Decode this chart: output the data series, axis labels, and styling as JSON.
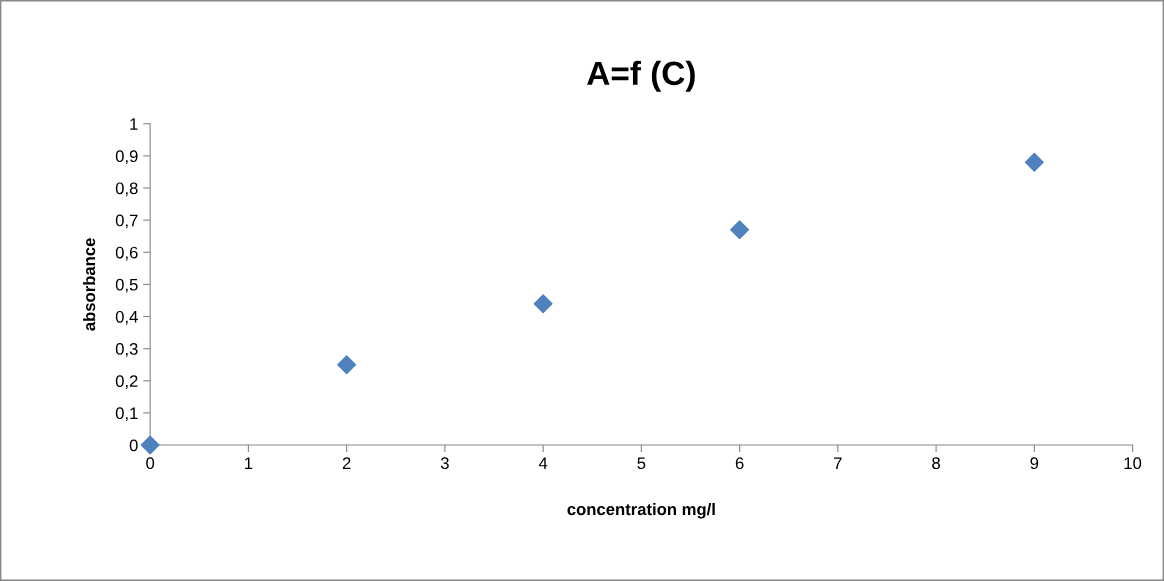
{
  "chart_data": {
    "type": "scatter",
    "title": "A=f (C)",
    "xlabel": "concentration mg/l",
    "ylabel": "absorbance",
    "x": [
      0,
      2,
      4,
      6,
      9
    ],
    "series": [
      {
        "color": "#4f81bd",
        "values": [
          0,
          0.25,
          0.44,
          0.67,
          0.88
        ]
      }
    ],
    "marker": "diamond",
    "grid": false,
    "xlim": [
      0,
      10
    ],
    "xticks": [
      0,
      1,
      2,
      3,
      4,
      5,
      6,
      7,
      8,
      9,
      10
    ],
    "ylim": [
      0,
      1
    ],
    "yticks": [
      0,
      {
        "value": 0.1,
        "label": "0,1"
      },
      {
        "value": 0.2,
        "label": "0,2"
      },
      {
        "value": 0.3,
        "label": "0,3"
      },
      {
        "value": 0.4,
        "label": "0,4"
      },
      {
        "value": 0.5,
        "label": "0,5"
      },
      {
        "value": 0.6,
        "label": "0,6"
      },
      {
        "value": 0.7,
        "label": "0,7"
      },
      {
        "value": 0.8,
        "label": "0,8"
      },
      {
        "value": 0.9,
        "label": "0,9"
      },
      1
    ]
  }
}
